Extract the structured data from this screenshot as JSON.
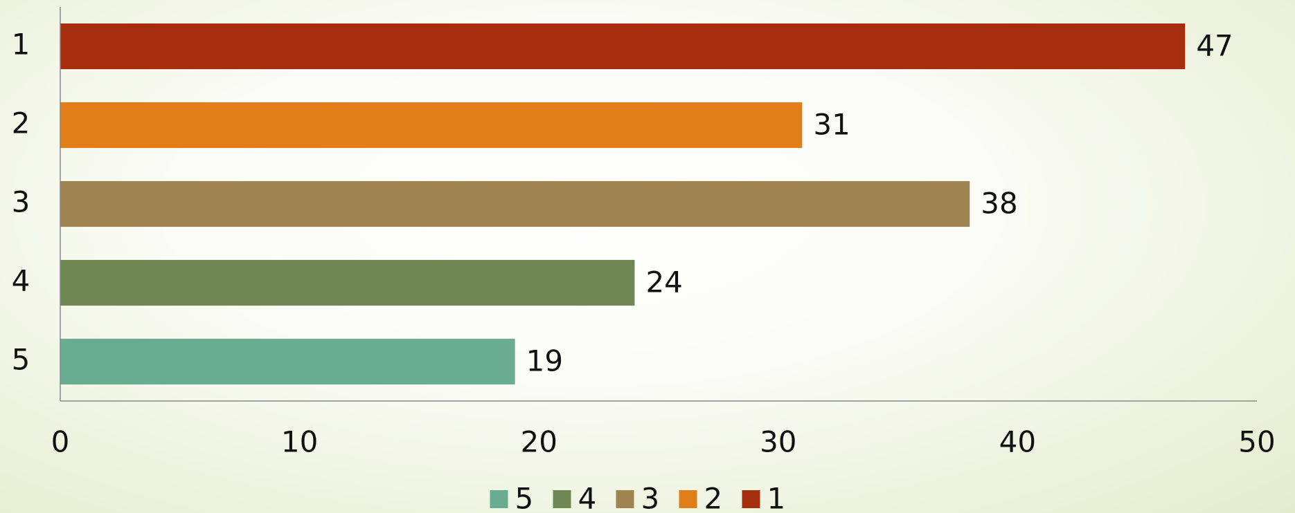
{
  "chart_data": {
    "type": "hbar",
    "categories": [
      "1",
      "2",
      "3",
      "4",
      "5"
    ],
    "values": [
      47,
      31,
      38,
      24,
      19
    ],
    "colors": [
      "#a52e0f",
      "#e07e19",
      "#9f8452",
      "#6f8752",
      "#69ac91"
    ],
    "xlim": [
      0,
      50
    ],
    "xticks": [
      0,
      10,
      20,
      30,
      40,
      50
    ],
    "grid": false,
    "legend": "bottom"
  }
}
